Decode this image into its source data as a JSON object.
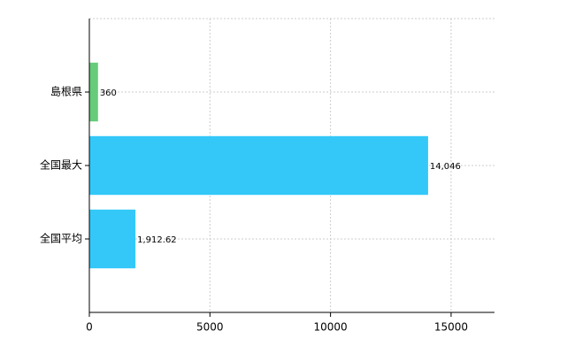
{
  "chart_data": {
    "type": "barh",
    "categories": [
      "島根県",
      "全国最大",
      "全国平均"
    ],
    "values": [
      360,
      14046,
      1912.62
    ],
    "value_labels": [
      "360",
      "14,046",
      "1,912.62"
    ],
    "colors": [
      "#66cc7a",
      "#33c8f8",
      "#33c8f8"
    ],
    "xlim": [
      0,
      16800
    ],
    "xticks": [
      0,
      5000,
      10000,
      15000
    ],
    "grid": true
  }
}
